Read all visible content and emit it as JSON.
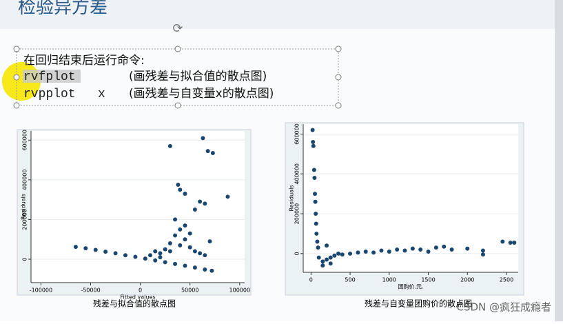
{
  "slide": {
    "title": "检验异方差",
    "textbox": {
      "intro": "在回归结束后运行命令:",
      "commands": [
        {
          "code": "rvfplot",
          "note": "(画残差与拟合值的散点图)"
        },
        {
          "code": "rvpplot   x",
          "note": "(画残差与自变量x的散点图)"
        }
      ]
    }
  },
  "chart_data": [
    {
      "type": "scatter",
      "caption": "残差与拟合值的散点图",
      "xlabel": "Fitted values",
      "ylabel": "Residuals",
      "color": "#1a476f",
      "grid": true,
      "xlim": [
        -110000,
        105000
      ],
      "ylim": [
        -118000,
        646000
      ],
      "xticks": [
        -100000,
        -50000,
        0,
        50000,
        100000
      ],
      "yticks": [
        0,
        200000,
        400000,
        600000
      ],
      "x": [
        -65000,
        -55000,
        -45000,
        -35000,
        -25000,
        -15000,
        -5000,
        5000,
        15000,
        25000,
        35000,
        45000,
        55000,
        65000,
        72000,
        10000,
        20000,
        25000,
        30000,
        35000,
        40000,
        45000,
        50000,
        55000,
        60000,
        65000,
        30000,
        40000,
        20000,
        15000,
        30000,
        38000,
        40000,
        45000,
        60000,
        65000,
        63000,
        68000,
        73000,
        88000,
        35000,
        45000,
        50000,
        55000,
        70000
      ],
      "y": [
        62000,
        55000,
        47000,
        38000,
        30000,
        20000,
        12000,
        3000,
        -6000,
        -15000,
        -24000,
        -33000,
        -42000,
        -52000,
        -58000,
        20000,
        30000,
        50000,
        80000,
        120000,
        150000,
        100000,
        60000,
        40000,
        30000,
        20000,
        40000,
        70000,
        10000,
        40000,
        570000,
        375000,
        350000,
        330000,
        290000,
        280000,
        610000,
        545000,
        535000,
        315000,
        200000,
        170000,
        130000,
        250000,
        90000
      ]
    },
    {
      "type": "scatter",
      "caption": "残差与自变量团购价的散点图",
      "xlabel": "团购价.元.",
      "ylabel": "Residuals",
      "color": "#1a476f",
      "grid": true,
      "xlim": [
        -100,
        2650
      ],
      "ylim": [
        -94000,
        650000
      ],
      "xticks": [
        0,
        500,
        1000,
        1500,
        2000,
        2500
      ],
      "yticks": [
        0,
        200000,
        400000,
        600000
      ],
      "x": [
        20,
        25,
        30,
        40,
        45,
        50,
        55,
        60,
        65,
        70,
        80,
        90,
        100,
        150,
        200,
        250,
        300,
        350,
        400,
        500,
        600,
        700,
        800,
        900,
        1000,
        1100,
        1200,
        1300,
        1400,
        1500,
        1600,
        1700,
        1800,
        2000,
        2200,
        2450,
        2550,
        2600,
        150,
        250,
        200,
        2200
      ],
      "y": [
        620000,
        560000,
        540000,
        420000,
        380000,
        300000,
        260000,
        200000,
        150000,
        100000,
        60000,
        30000,
        -20000,
        -40000,
        -30000,
        -20000,
        -10000,
        0,
        -5000,
        0,
        5000,
        10000,
        5000,
        15000,
        10000,
        20000,
        15000,
        25000,
        20000,
        10000,
        30000,
        35000,
        20000,
        25000,
        15000,
        60000,
        55000,
        55000,
        -60000,
        -50000,
        40000,
        -5000
      ]
    }
  ],
  "watermark": "CSDN @疯狂成瘾者"
}
